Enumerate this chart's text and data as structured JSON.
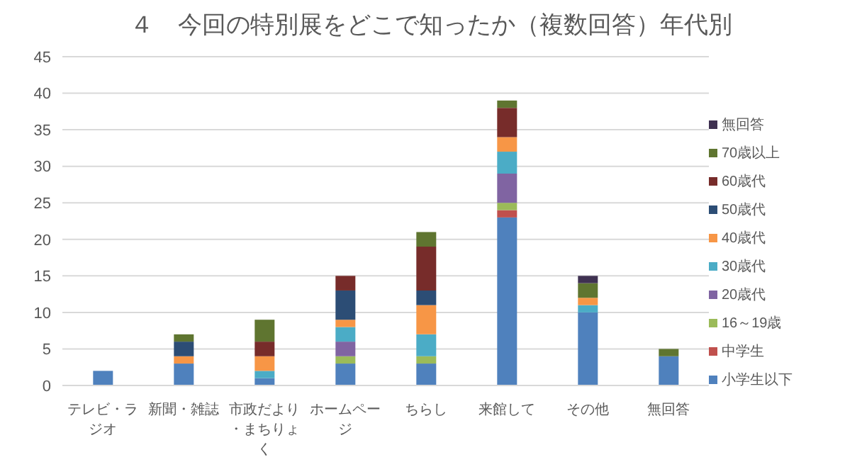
{
  "chart_data": {
    "type": "bar",
    "stacked": true,
    "title": "４　今回の特別展をどこで知ったか（複数回答）年代別",
    "categories": [
      "テレビ・ラジオ",
      "新聞・雑誌",
      "市政だより・まちりょく",
      "ホームページ",
      "ちらし",
      "来館して",
      "その他",
      "無回答"
    ],
    "series": [
      {
        "name": "小学生以下",
        "color": "#4f81bd",
        "values": [
          2,
          3,
          1,
          3,
          3,
          23,
          10,
          4
        ]
      },
      {
        "name": "中学生",
        "color": "#c0504d",
        "values": [
          0,
          0,
          0,
          0,
          0,
          1,
          0,
          0
        ]
      },
      {
        "name": "16～19歳",
        "color": "#9bbb59",
        "values": [
          0,
          0,
          0,
          1,
          1,
          1,
          0,
          0
        ]
      },
      {
        "name": "20歳代",
        "color": "#8064a2",
        "values": [
          0,
          0,
          0,
          2,
          0,
          4,
          0,
          0
        ]
      },
      {
        "name": "30歳代",
        "color": "#4bacc6",
        "values": [
          0,
          0,
          1,
          2,
          3,
          3,
          1,
          0
        ]
      },
      {
        "name": "40歳代",
        "color": "#f79646",
        "values": [
          0,
          1,
          2,
          1,
          4,
          2,
          1,
          0
        ]
      },
      {
        "name": "50歳代",
        "color": "#2c4d75",
        "values": [
          0,
          2,
          0,
          4,
          2,
          0,
          0,
          0
        ]
      },
      {
        "name": "60歳代",
        "color": "#772c2a",
        "values": [
          0,
          0,
          2,
          2,
          6,
          4,
          0,
          0
        ]
      },
      {
        "name": "70歳以上",
        "color": "#5f7530",
        "values": [
          0,
          1,
          3,
          0,
          2,
          1,
          2,
          1
        ]
      },
      {
        "name": "無回答",
        "color": "#3f3151",
        "values": [
          0,
          0,
          0,
          0,
          0,
          0,
          1,
          0
        ]
      }
    ],
    "ylim": [
      0,
      45
    ],
    "yticks": [
      0,
      5,
      10,
      15,
      20,
      25,
      30,
      35,
      40,
      45
    ],
    "grid": "y",
    "legend": "right"
  }
}
